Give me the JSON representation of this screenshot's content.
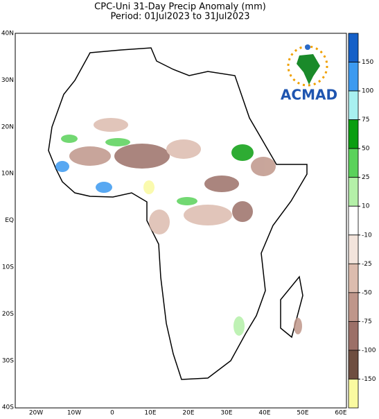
{
  "title": [
    "CPC-Uni 31-Day Precip Anomaly (mm)",
    "Period: 01Jul2023 to 31Jul2023"
  ],
  "lat_labels": [
    "40N",
    "30N",
    "20N",
    "10N",
    "EQ",
    "10S",
    "20S",
    "30S",
    "40S"
  ],
  "lon_labels": [
    "20W",
    "10W",
    "0",
    "10E",
    "20E",
    "30E",
    "40E",
    "50E",
    "60E"
  ],
  "logo": "ACMAD",
  "colorbar": {
    "ticks": [
      150,
      100,
      75,
      50,
      25,
      10,
      -10,
      -25,
      -50,
      -75,
      -100,
      -150
    ],
    "colors": [
      "#1560c8",
      "#3c9af0",
      "#a8f0f0",
      "#0a9e10",
      "#5ad25a",
      "#b4f0a8",
      "#ffffff",
      "#f3e4dc",
      "#dcbcae",
      "#bf968a",
      "#9c7068",
      "#6e4e40",
      "#fafaa0"
    ]
  }
}
